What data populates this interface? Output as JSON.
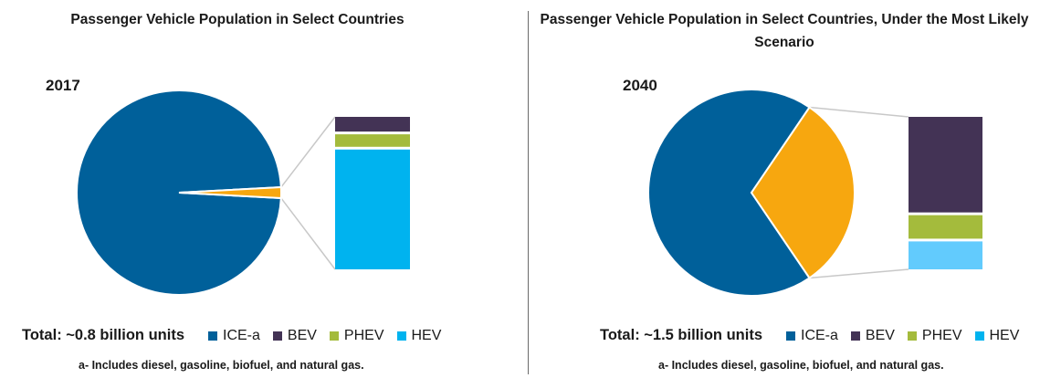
{
  "colors": {
    "ICE-a": "#00609a",
    "BEV": "#433355",
    "PHEV": "#a4bb3c",
    "HEV": "#00b3ef",
    "HEV_2040": "#62cbfd",
    "Other": "#f7a70f",
    "connector": "#c8c8c8"
  },
  "chart_data": [
    {
      "type": "pie",
      "title": "Passenger Vehicle Population in Select Countries",
      "year": "2017",
      "total": "Total: ~0.8 billion units",
      "slices": [
        {
          "label": "ICE-a",
          "value": 98.3
        },
        {
          "label": "",
          "value": 1.7
        }
      ],
      "breakdown": [
        {
          "label": "BEV",
          "value": 10
        },
        {
          "label": "PHEV",
          "value": 8.5
        },
        {
          "label": "HEV",
          "value": 81.5
        }
      ],
      "legend": [
        "ICE-a",
        "BEV",
        "PHEV",
        "HEV"
      ],
      "footnote": "a- Includes diesel, gasoline, biofuel, and natural gas."
    },
    {
      "type": "pie",
      "title": "Passenger Vehicle Population in Select Countries, Under the Most Likely Scenario",
      "year": "2040",
      "total": "Total: ~1.5 billion units",
      "slices": [
        {
          "label": "ICE-a",
          "value": 69
        },
        {
          "label": "",
          "value": 31
        }
      ],
      "breakdown": [
        {
          "label": "BEV",
          "value": 65
        },
        {
          "label": "PHEV",
          "value": 16
        },
        {
          "label": "HEV",
          "value": 19
        }
      ],
      "legend": [
        "ICE-a",
        "BEV",
        "PHEV",
        "HEV"
      ],
      "footnote": "a- Includes diesel, gasoline, biofuel, and natural gas."
    }
  ]
}
